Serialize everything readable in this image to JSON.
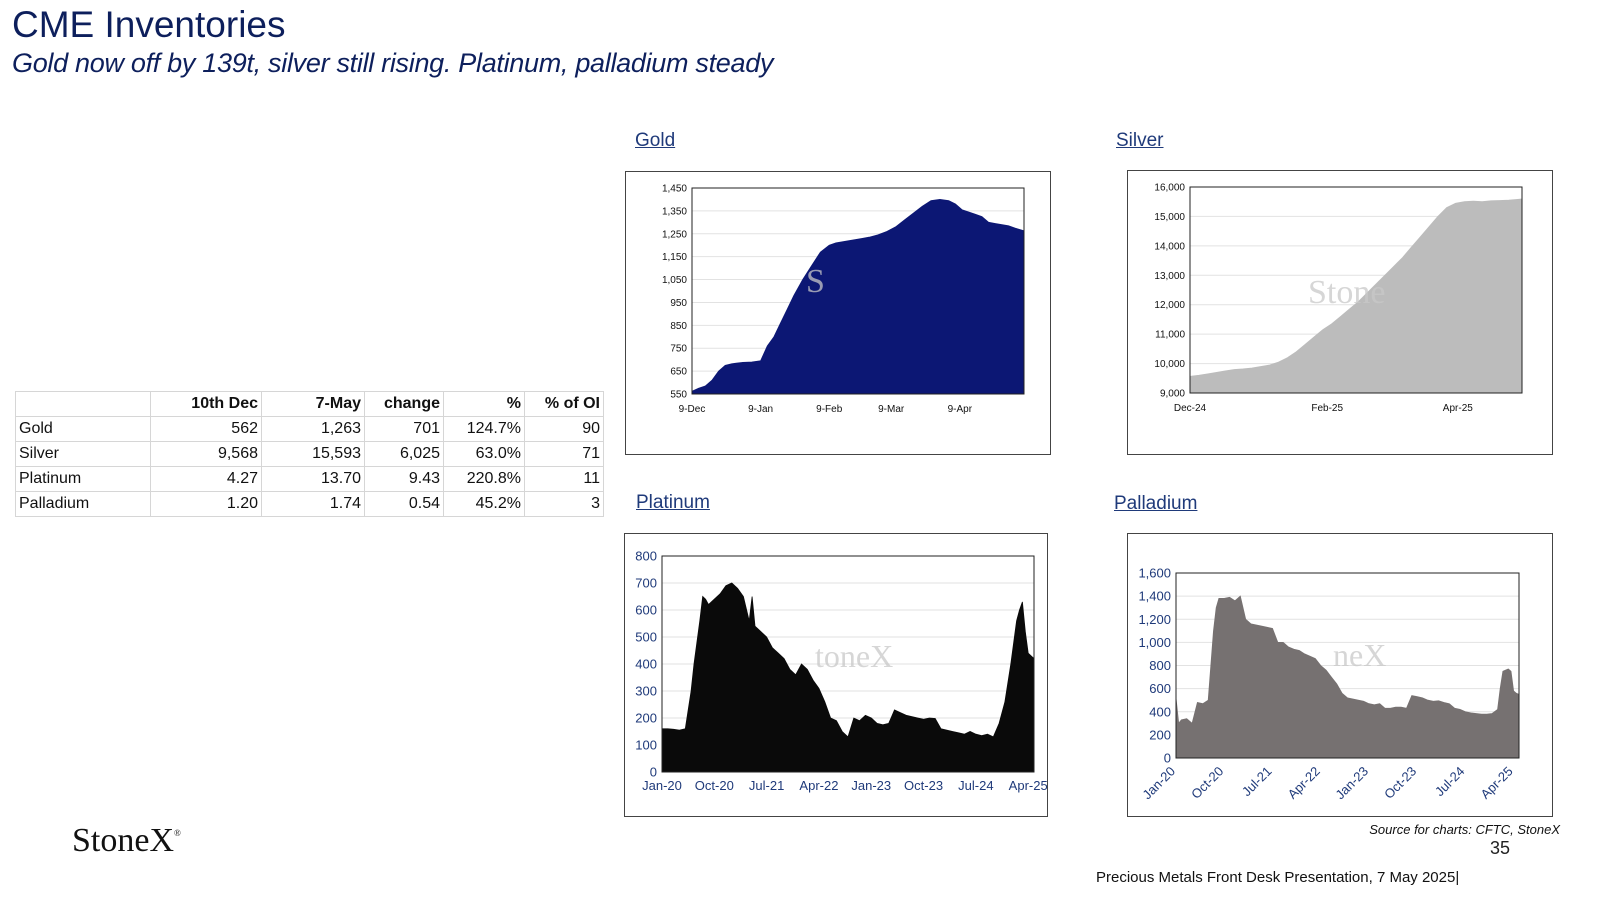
{
  "header": {
    "title": "CME Inventories",
    "subtitle": "Gold now off by 139t, silver still rising.  Platinum, palladium steady"
  },
  "table": {
    "columns": [
      "",
      "10th Dec",
      "7-May",
      "change",
      "%",
      "% of OI"
    ],
    "rows": [
      [
        "Gold",
        "562",
        "1,263",
        "701",
        "124.7%",
        "90"
      ],
      [
        "Silver",
        "9,568",
        "15,593",
        "6,025",
        "63.0%",
        "71"
      ],
      [
        "Platinum",
        "4.27",
        "13.70",
        "9.43",
        "220.8%",
        "11"
      ],
      [
        "Palladium",
        "1.20",
        "1.74",
        "0.54",
        "45.2%",
        "3"
      ]
    ]
  },
  "labels": {
    "gold": "Gold",
    "silver": "Silver",
    "platinum": "Platinum",
    "palladium": "Palladium"
  },
  "logo": {
    "text": "StoneX",
    "mark": "®"
  },
  "footer": {
    "source": "Source for charts: CFTC, StoneX",
    "page": "35",
    "presentation": "Precious Metals Front Desk Presentation, 7 May 2025|"
  },
  "watermarks": {
    "gold": "S",
    "silver": "Stone",
    "platinum": "toneX",
    "palladium": "neX"
  },
  "chart_data": [
    {
      "id": "gold",
      "type": "area",
      "color": "#0c1774",
      "ylim": [
        550,
        1450
      ],
      "yticks": [
        "1,450",
        "1,350",
        "1,250",
        "1,150",
        "1,050",
        "950",
        "850",
        "750",
        "650",
        "550"
      ],
      "ytick_values": [
        1450,
        1350,
        1250,
        1150,
        1050,
        950,
        850,
        750,
        650,
        550
      ],
      "xticks": [
        "9-Dec",
        "9-Jan",
        "9-Feb",
        "9-Mar",
        "9-Apr"
      ],
      "xtick_pos": [
        0,
        31,
        62,
        90,
        121
      ],
      "xmax": 150,
      "x": [
        0,
        3,
        6,
        9,
        12,
        15,
        18,
        20,
        23,
        27,
        31,
        34,
        37,
        40,
        43,
        46,
        50,
        54,
        58,
        62,
        65,
        68,
        71,
        74,
        77,
        80,
        84,
        88,
        92,
        96,
        100,
        104,
        108,
        112,
        116,
        119,
        122,
        125,
        128,
        131,
        134,
        137,
        140,
        143,
        146,
        150
      ],
      "y": [
        562,
        575,
        585,
        610,
        650,
        675,
        682,
        685,
        688,
        690,
        695,
        760,
        800,
        860,
        920,
        980,
        1050,
        1110,
        1170,
        1200,
        1210,
        1215,
        1220,
        1225,
        1230,
        1235,
        1245,
        1260,
        1280,
        1310,
        1340,
        1370,
        1395,
        1400,
        1395,
        1380,
        1355,
        1345,
        1335,
        1325,
        1300,
        1295,
        1290,
        1285,
        1275,
        1263
      ]
    },
    {
      "id": "silver",
      "type": "area",
      "color": "#bcbcbc",
      "ylim": [
        9000,
        16000
      ],
      "yticks": [
        "16,000",
        "15,000",
        "14,000",
        "13,000",
        "12,000",
        "11,000",
        "10,000",
        "9,000"
      ],
      "ytick_values": [
        16000,
        15000,
        14000,
        13000,
        12000,
        11000,
        10000,
        9000
      ],
      "xticks": [
        "Dec-24",
        "Feb-25",
        "Apr-25"
      ],
      "xtick_pos": [
        0,
        62,
        121
      ],
      "xmax": 150,
      "x": [
        0,
        4,
        8,
        12,
        16,
        20,
        24,
        28,
        32,
        36,
        40,
        44,
        48,
        52,
        56,
        60,
        64,
        68,
        72,
        76,
        80,
        84,
        88,
        92,
        96,
        100,
        104,
        108,
        112,
        116,
        120,
        124,
        128,
        132,
        136,
        140,
        144,
        148,
        150
      ],
      "y": [
        9568,
        9600,
        9650,
        9700,
        9750,
        9800,
        9820,
        9850,
        9900,
        9950,
        10050,
        10200,
        10400,
        10650,
        10900,
        11150,
        11350,
        11600,
        11850,
        12100,
        12400,
        12700,
        13000,
        13300,
        13600,
        13950,
        14300,
        14650,
        15000,
        15300,
        15450,
        15500,
        15520,
        15500,
        15530,
        15540,
        15550,
        15580,
        15593
      ]
    },
    {
      "id": "platinum",
      "type": "area",
      "color": "#0a0a0a",
      "ylim": [
        0,
        800
      ],
      "yticks": [
        "800",
        "700",
        "600",
        "500",
        "400",
        "300",
        "200",
        "100",
        "0"
      ],
      "ytick_values": [
        800,
        700,
        600,
        500,
        400,
        300,
        200,
        100,
        0
      ],
      "xticks": [
        "Jan-20",
        "Oct-20",
        "Jul-21",
        "Apr-22",
        "Jan-23",
        "Oct-23",
        "Jul-24",
        "Apr-25"
      ],
      "xtick_pos": [
        0,
        9,
        18,
        27,
        36,
        45,
        54,
        63
      ],
      "xmax": 64,
      "x": [
        0,
        1,
        2,
        3,
        4,
        5,
        5.5,
        6,
        6.5,
        7,
        7.5,
        8,
        9,
        10,
        11,
        12,
        13,
        14,
        15,
        15.5,
        16,
        17,
        18,
        19,
        20,
        21,
        22,
        23,
        24,
        25,
        26,
        27,
        28,
        29,
        30,
        31,
        32,
        33,
        34,
        35,
        36,
        37,
        38,
        39,
        40,
        41,
        42,
        43,
        44,
        45,
        46,
        47,
        48,
        49,
        50,
        51,
        52,
        53,
        54,
        55,
        56,
        57,
        58,
        59,
        60,
        60.5,
        61,
        61.5,
        62,
        62.5,
        63,
        63.5,
        64
      ],
      "y": [
        160,
        160,
        158,
        155,
        160,
        300,
        400,
        480,
        560,
        650,
        640,
        620,
        640,
        660,
        690,
        700,
        680,
        650,
        560,
        650,
        540,
        520,
        500,
        460,
        440,
        420,
        380,
        360,
        400,
        380,
        340,
        310,
        260,
        200,
        190,
        150,
        130,
        200,
        190,
        210,
        200,
        180,
        175,
        180,
        230,
        220,
        210,
        205,
        200,
        195,
        200,
        198,
        160,
        155,
        150,
        145,
        140,
        150,
        140,
        135,
        140,
        130,
        180,
        260,
        400,
        480,
        560,
        600,
        630,
        520,
        440,
        430,
        420
      ]
    },
    {
      "id": "palladium",
      "type": "area",
      "color": "#767171",
      "ylim": [
        0,
        1600
      ],
      "yticks": [
        "1,600",
        "1,400",
        "1,200",
        "1,000",
        "800",
        "600",
        "400",
        "200",
        "0"
      ],
      "ytick_values": [
        1600,
        1400,
        1200,
        1000,
        800,
        600,
        400,
        200,
        0
      ],
      "xticks": [
        "Jan-20",
        "Oct-20",
        "Jul-21",
        "Apr-22",
        "Jan-23",
        "Oct-23",
        "Jul-24",
        "Apr-25"
      ],
      "xtick_pos": [
        0,
        9,
        18,
        27,
        36,
        45,
        54,
        63
      ],
      "xmax": 64,
      "x": [
        0,
        0.5,
        1,
        2,
        3,
        4,
        5,
        6,
        7,
        7.5,
        8,
        9,
        10,
        11,
        12,
        13,
        14,
        15,
        16,
        17,
        18,
        19,
        20,
        21,
        22,
        23,
        24,
        25,
        26,
        27,
        28,
        29,
        30,
        31,
        32,
        33,
        34,
        35,
        36,
        37,
        38,
        39,
        40,
        41,
        42,
        43,
        44,
        45,
        46,
        47,
        48,
        49,
        50,
        51,
        52,
        53,
        54,
        55,
        56,
        57,
        58,
        59,
        60,
        60.5,
        61,
        61.5,
        62,
        62.5,
        63,
        63.5,
        64
      ],
      "y": [
        520,
        300,
        330,
        340,
        300,
        480,
        470,
        500,
        1100,
        1300,
        1380,
        1380,
        1390,
        1360,
        1400,
        1200,
        1160,
        1150,
        1140,
        1130,
        1120,
        1000,
        1000,
        960,
        940,
        930,
        900,
        880,
        860,
        800,
        760,
        700,
        640,
        560,
        520,
        510,
        500,
        490,
        470,
        460,
        470,
        430,
        430,
        440,
        440,
        430,
        540,
        530,
        520,
        500,
        490,
        495,
        480,
        470,
        430,
        420,
        400,
        390,
        385,
        380,
        380,
        385,
        420,
        600,
        750,
        760,
        770,
        750,
        580,
        560,
        550
      ]
    }
  ]
}
